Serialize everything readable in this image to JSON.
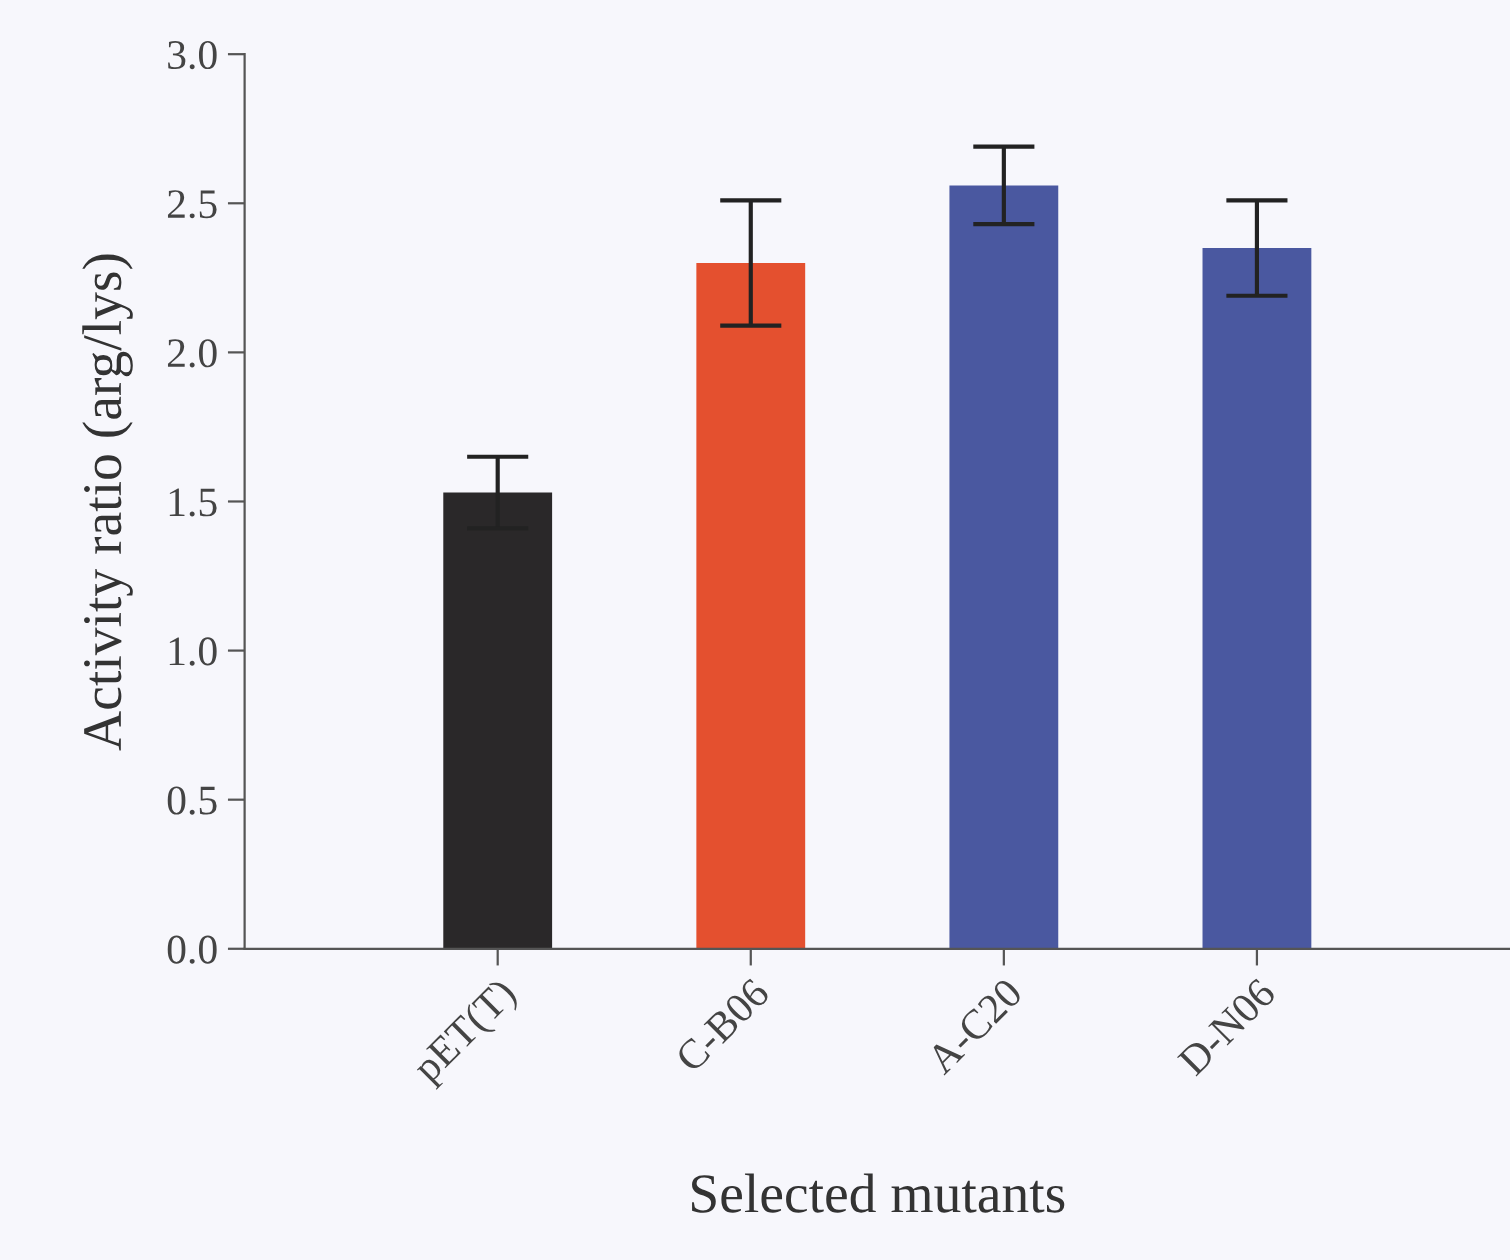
{
  "chart_data": {
    "type": "bar",
    "xlabel": "Selected mutants",
    "ylabel": "Activity ratio (arg/lys)",
    "categories": [
      "pET(T)",
      "C-B06",
      "A-C20",
      "D-N06"
    ],
    "values": [
      1.53,
      2.3,
      2.56,
      2.35
    ],
    "errors": [
      0.12,
      0.21,
      0.13,
      0.16
    ],
    "colors": [
      "#2a2829",
      "#e4502f",
      "#4a58a0",
      "#4a58a0"
    ],
    "ylim": [
      0,
      3.0
    ],
    "yticks": [
      {
        "value": 0,
        "label": "0.0"
      },
      {
        "value": 0.5,
        "label": "0.5"
      },
      {
        "value": 1.0,
        "label": "1.0"
      },
      {
        "value": 1.5,
        "label": "1.5"
      },
      {
        "value": 2.0,
        "label": "2.0"
      },
      {
        "value": 2.5,
        "label": "2.5"
      },
      {
        "value": 3.0,
        "label": "3.0"
      }
    ],
    "grid": false,
    "legend": false
  }
}
